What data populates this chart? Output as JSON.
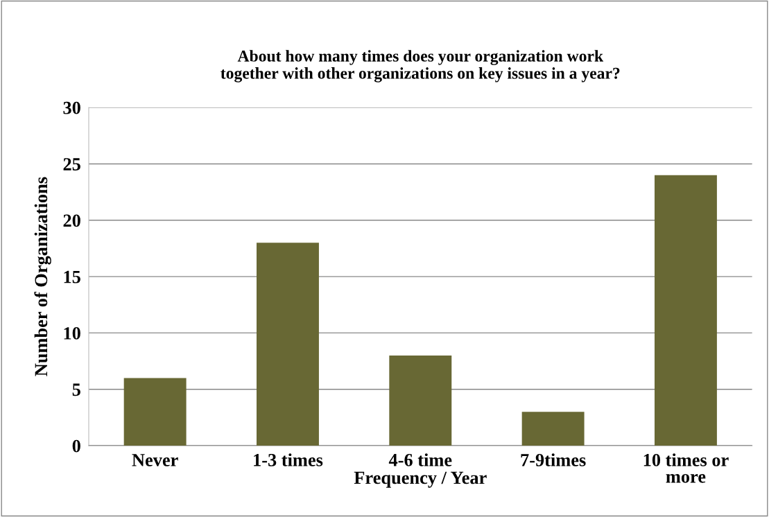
{
  "chart_data": {
    "type": "bar",
    "title": "About how many times does your organization work\ntogether with other organizations on key issues in a year?",
    "xlabel": "Frequency / Year",
    "ylabel": "Number of Organizations",
    "categories": [
      "Never",
      "1-3 times",
      "4-6 time",
      "7-9times",
      "10 times or\nmore"
    ],
    "values": [
      6,
      18,
      8,
      3,
      24
    ],
    "color": "#686834",
    "ylim": [
      0,
      30
    ],
    "yticks": [
      0,
      5,
      10,
      15,
      20,
      25,
      30
    ],
    "grid": "y",
    "legend": false
  }
}
